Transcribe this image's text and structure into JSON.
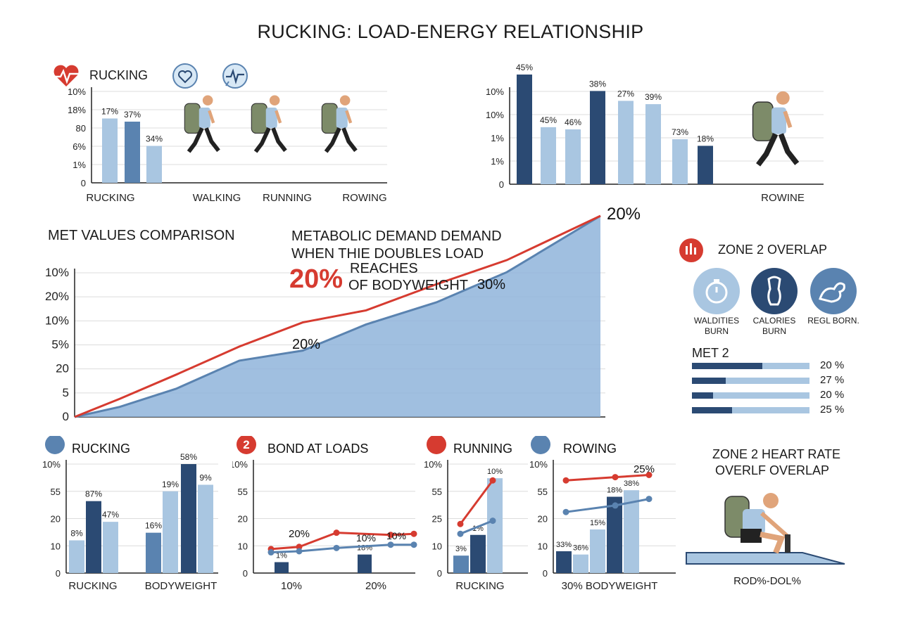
{
  "title": "RUCKING: LOAD-ENERGY RELATIONSHIP",
  "colors": {
    "dark": "#2b4a73",
    "mid": "#5a83b0",
    "light": "#a9c6e1",
    "red": "#d63b30",
    "area": "#8fb4da"
  },
  "chart_data": [
    {
      "id": "topleft",
      "type": "bar",
      "title": "RUCKING",
      "icon": "heart-pulse-icon",
      "yticks": [
        "0",
        "1%",
        "6%",
        "80",
        "18%",
        "10%"
      ],
      "categories": [
        "RUCKING",
        "WALKING",
        "RUNNING",
        "ROWING"
      ],
      "bars": [
        {
          "label": "17%",
          "value": 0.61,
          "color": "light"
        },
        {
          "label": "37%",
          "value": 0.58,
          "color": "mid"
        },
        {
          "label": "34%",
          "value": 0.35,
          "color": "light"
        }
      ]
    },
    {
      "id": "topright",
      "type": "bar",
      "yticks": [
        "0",
        "1%",
        "1%",
        "10%",
        "10%"
      ],
      "category": "ROWINE",
      "bars": [
        {
          "label": "45%",
          "value": 1.0,
          "color": "dark"
        },
        {
          "label": "45%",
          "value": 0.52,
          "color": "light"
        },
        {
          "label": "46%",
          "value": 0.5,
          "color": "light"
        },
        {
          "label": "38%",
          "value": 0.85,
          "color": "dark"
        },
        {
          "label": "27%",
          "value": 0.76,
          "color": "light"
        },
        {
          "label": "39%",
          "value": 0.73,
          "color": "light"
        },
        {
          "label": "73%",
          "value": 0.41,
          "color": "light"
        },
        {
          "label": "18%",
          "value": 0.35,
          "color": "dark"
        }
      ]
    },
    {
      "id": "met",
      "type": "area",
      "title": "MET VALUES COMPARISON",
      "yticks": [
        "0",
        "5",
        "20",
        "5%",
        "10%",
        "20%",
        "10%"
      ],
      "annotation": {
        "line1": "METABOLIC DEMAND DEMAND",
        "line2": "WHEN THIE DOUBLES LOAD",
        "pct": "20%",
        "reaches": "REACHES",
        "of": "OF BODYWEIGHT"
      },
      "point_labels": [
        "20%",
        "30%",
        "20%"
      ],
      "red_line": [
        0,
        0.09,
        0.21,
        0.35,
        0.47,
        0.53,
        0.66,
        0.78,
        1.0
      ],
      "blue_area": [
        0,
        0.05,
        0.14,
        0.28,
        0.33,
        0.46,
        0.57,
        0.72,
        1.0
      ]
    },
    {
      "id": "bottom1",
      "type": "bar",
      "title": "RUCKING",
      "yticks": [
        "0",
        "10",
        "20",
        "55",
        "10%"
      ],
      "categories": [
        "RUCKING",
        "BODYWEIGHT"
      ],
      "bars": [
        {
          "label": "8%",
          "value": 0.3,
          "color": "light"
        },
        {
          "label": "87%",
          "value": 0.66,
          "color": "dark"
        },
        {
          "label": "47%",
          "value": 0.47,
          "color": "light"
        },
        {
          "label": "16%",
          "value": 0.37,
          "color": "mid"
        },
        {
          "label": "19%",
          "value": 0.75,
          "color": "light"
        },
        {
          "label": "58%",
          "value": 1.0,
          "color": "dark"
        },
        {
          "label": "9%",
          "value": 0.81,
          "color": "light"
        }
      ]
    },
    {
      "id": "bottom2",
      "type": "line",
      "title": "BOND AT LOADS",
      "badge": "2",
      "yticks": [
        "0",
        "10",
        "20",
        "55",
        "10%"
      ],
      "categories": [
        "10%",
        "20%"
      ],
      "bars": [
        {
          "label": "1%",
          "value": 0.1
        },
        {
          "label": "18%",
          "value": 0.17
        }
      ],
      "red_line": [
        0.22,
        0.24,
        0.37,
        0.35,
        0.36
      ],
      "blue_line": [
        0.19,
        0.2,
        0.23,
        0.26,
        0.26
      ],
      "point_labels": [
        "20%",
        "10%",
        "10%"
      ]
    },
    {
      "id": "bottom3",
      "type": "combo",
      "title": "RUNNING",
      "yticks": [
        "0",
        "10",
        "25",
        "55",
        "10%"
      ],
      "categories": [
        "RUCKING"
      ],
      "bars": [
        {
          "label": "3%",
          "value": 0.16,
          "color": "mid"
        },
        {
          "label": "1%",
          "value": 0.35,
          "color": "dark"
        },
        {
          "label": "10%",
          "value": 0.87,
          "color": "light"
        }
      ],
      "red_line": [
        0.45,
        0.85
      ],
      "blue_line": [
        0.36,
        0.48
      ],
      "point_labels": [
        "10%"
      ]
    },
    {
      "id": "bottom4",
      "type": "combo",
      "title": "ROWING",
      "yticks": [
        "0",
        "10",
        "20",
        "55",
        "10%"
      ],
      "categories": [
        "30% BODYWEIGHT"
      ],
      "bars": [
        {
          "label": "33%",
          "value": 0.2,
          "color": "dark"
        },
        {
          "label": "36%",
          "value": 0.17,
          "color": "light"
        },
        {
          "label": "15%",
          "value": 0.4,
          "color": "light"
        },
        {
          "label": "18%",
          "value": 0.7,
          "color": "dark"
        },
        {
          "label": "38%",
          "value": 0.76,
          "color": "light"
        }
      ],
      "red_line": [
        0.85,
        0.88,
        0.9
      ],
      "blue_line": [
        0.56,
        0.62,
        0.68
      ],
      "point_labels": [
        "25%"
      ]
    }
  ],
  "zone2": {
    "title": "ZONE 2 OVERLAP",
    "items": [
      {
        "label": "WALDITIES BURN"
      },
      {
        "label": "CALORIES BURN"
      },
      {
        "label": "REGL BORN."
      }
    ],
    "met_title": "MET 2",
    "met_bars": [
      {
        "label": "20 %",
        "fill": 0.6
      },
      {
        "label": "27 %",
        "fill": 0.29
      },
      {
        "label": "20 %",
        "fill": 0.18
      },
      {
        "label": "25 %",
        "fill": 0.34
      }
    ]
  },
  "hr": {
    "title_line1": "ZONE 2 HEART RATE",
    "title_line2": "OVERLF OVERLAP",
    "caption": "ROD%-DOL%"
  }
}
